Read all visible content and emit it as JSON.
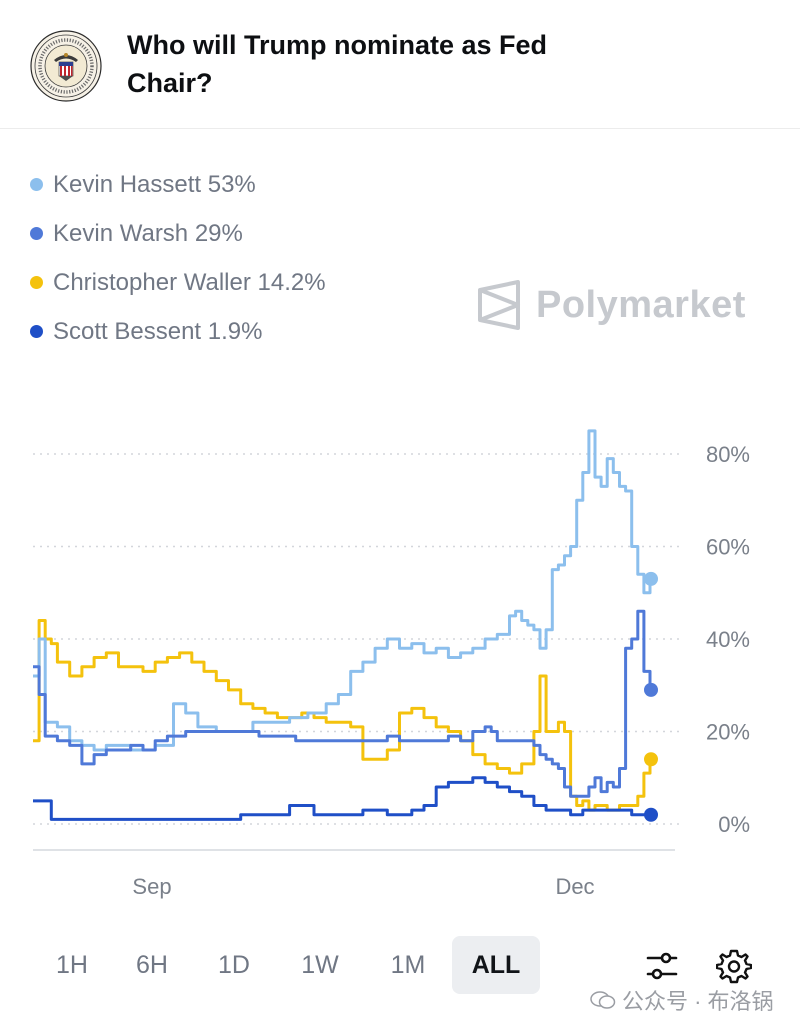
{
  "header": {
    "title": "Who will Trump nominate as Fed Chair?"
  },
  "watermark": {
    "text": "Polymarket"
  },
  "legend": [
    {
      "label": "Kevin Hassett 53%",
      "color": "#8cbfed"
    },
    {
      "label": "Kevin Warsh 29%",
      "color": "#4f79d8"
    },
    {
      "label": "Christopher Waller 14.2%",
      "color": "#f4c20d"
    },
    {
      "label": "Scott Bessent 1.9%",
      "color": "#1f4fc7"
    }
  ],
  "toolbar": {
    "ranges": [
      "1H",
      "6H",
      "1D",
      "1W",
      "1M",
      "ALL"
    ],
    "active": "ALL"
  },
  "footer": {
    "text": "公众号 · 布洛锅"
  },
  "chart_data": {
    "type": "line",
    "x_ticks": [
      "Sep",
      "Dec"
    ],
    "y_ticks": [
      "0%",
      "20%",
      "40%",
      "60%",
      "80%"
    ],
    "ylim": [
      0,
      85
    ],
    "xlim": [
      0,
      100
    ],
    "grid": true,
    "series": [
      {
        "name": "Kevin Hassett",
        "color": "#8cbfed",
        "points": [
          [
            0,
            32
          ],
          [
            1,
            40
          ],
          [
            2,
            22
          ],
          [
            4,
            21
          ],
          [
            6,
            18
          ],
          [
            8,
            17
          ],
          [
            10,
            16
          ],
          [
            12,
            17
          ],
          [
            14,
            17
          ],
          [
            16,
            16
          ],
          [
            18,
            16
          ],
          [
            20,
            17
          ],
          [
            22,
            17
          ],
          [
            23,
            26
          ],
          [
            25,
            24
          ],
          [
            27,
            21
          ],
          [
            30,
            20
          ],
          [
            33,
            20
          ],
          [
            36,
            22
          ],
          [
            39,
            22
          ],
          [
            42,
            23
          ],
          [
            45,
            24
          ],
          [
            48,
            26
          ],
          [
            50,
            28
          ],
          [
            52,
            33
          ],
          [
            54,
            35
          ],
          [
            56,
            38
          ],
          [
            58,
            40
          ],
          [
            60,
            38
          ],
          [
            62,
            39
          ],
          [
            64,
            37
          ],
          [
            66,
            38
          ],
          [
            68,
            36
          ],
          [
            70,
            37
          ],
          [
            72,
            38
          ],
          [
            74,
            40
          ],
          [
            76,
            41
          ],
          [
            78,
            45
          ],
          [
            79,
            46
          ],
          [
            80,
            44
          ],
          [
            81,
            43
          ],
          [
            82,
            42
          ],
          [
            83,
            38
          ],
          [
            84,
            42
          ],
          [
            85,
            55
          ],
          [
            86,
            56
          ],
          [
            87,
            58
          ],
          [
            88,
            60
          ],
          [
            89,
            70
          ],
          [
            90,
            76
          ],
          [
            91,
            85
          ],
          [
            92,
            75
          ],
          [
            93,
            73
          ],
          [
            94,
            79
          ],
          [
            95,
            76
          ],
          [
            96,
            73
          ],
          [
            97,
            72
          ],
          [
            98,
            60
          ],
          [
            99,
            54
          ],
          [
            100,
            50
          ],
          [
            101,
            53
          ]
        ]
      },
      {
        "name": "Kevin Warsh",
        "color": "#4f79d8",
        "points": [
          [
            0,
            34
          ],
          [
            1,
            28
          ],
          [
            2,
            19
          ],
          [
            4,
            18
          ],
          [
            6,
            17
          ],
          [
            8,
            13
          ],
          [
            10,
            15
          ],
          [
            12,
            16
          ],
          [
            14,
            16
          ],
          [
            16,
            17
          ],
          [
            18,
            16
          ],
          [
            20,
            18
          ],
          [
            22,
            19
          ],
          [
            25,
            20
          ],
          [
            28,
            20
          ],
          [
            31,
            20
          ],
          [
            34,
            20
          ],
          [
            37,
            19
          ],
          [
            40,
            19
          ],
          [
            43,
            18
          ],
          [
            46,
            18
          ],
          [
            49,
            18
          ],
          [
            52,
            18
          ],
          [
            55,
            18
          ],
          [
            58,
            19
          ],
          [
            60,
            18
          ],
          [
            62,
            18
          ],
          [
            64,
            18
          ],
          [
            66,
            18
          ],
          [
            68,
            19
          ],
          [
            70,
            18
          ],
          [
            72,
            20
          ],
          [
            74,
            21
          ],
          [
            75,
            20
          ],
          [
            76,
            18
          ],
          [
            78,
            18
          ],
          [
            80,
            18
          ],
          [
            82,
            17
          ],
          [
            83,
            15
          ],
          [
            84,
            14
          ],
          [
            85,
            13
          ],
          [
            86,
            12
          ],
          [
            87,
            8
          ],
          [
            88,
            6
          ],
          [
            89,
            6
          ],
          [
            90,
            6
          ],
          [
            91,
            8
          ],
          [
            92,
            10
          ],
          [
            93,
            7
          ],
          [
            94,
            9
          ],
          [
            95,
            8
          ],
          [
            96,
            12
          ],
          [
            97,
            38
          ],
          [
            98,
            40
          ],
          [
            99,
            46
          ],
          [
            100,
            33
          ],
          [
            101,
            29
          ]
        ]
      },
      {
        "name": "Christopher Waller",
        "color": "#f4c20d",
        "points": [
          [
            0,
            18
          ],
          [
            1,
            44
          ],
          [
            2,
            40
          ],
          [
            3,
            39
          ],
          [
            4,
            35
          ],
          [
            6,
            32
          ],
          [
            8,
            34
          ],
          [
            10,
            36
          ],
          [
            12,
            37
          ],
          [
            14,
            34
          ],
          [
            16,
            34
          ],
          [
            18,
            33
          ],
          [
            20,
            35
          ],
          [
            22,
            36
          ],
          [
            24,
            37
          ],
          [
            26,
            35
          ],
          [
            28,
            33
          ],
          [
            30,
            31
          ],
          [
            32,
            29
          ],
          [
            34,
            26
          ],
          [
            36,
            25
          ],
          [
            38,
            24
          ],
          [
            40,
            23
          ],
          [
            42,
            23
          ],
          [
            44,
            24
          ],
          [
            46,
            23
          ],
          [
            48,
            22
          ],
          [
            50,
            22
          ],
          [
            52,
            21
          ],
          [
            54,
            14
          ],
          [
            56,
            14
          ],
          [
            58,
            16
          ],
          [
            60,
            24
          ],
          [
            62,
            25
          ],
          [
            64,
            23
          ],
          [
            66,
            21
          ],
          [
            68,
            20
          ],
          [
            70,
            18
          ],
          [
            72,
            15
          ],
          [
            74,
            13
          ],
          [
            76,
            12
          ],
          [
            78,
            11
          ],
          [
            80,
            13
          ],
          [
            82,
            20
          ],
          [
            83,
            32
          ],
          [
            84,
            20
          ],
          [
            85,
            20
          ],
          [
            86,
            22
          ],
          [
            87,
            20
          ],
          [
            88,
            6
          ],
          [
            89,
            4
          ],
          [
            90,
            5
          ],
          [
            91,
            3
          ],
          [
            92,
            4
          ],
          [
            93,
            4
          ],
          [
            94,
            3
          ],
          [
            95,
            3
          ],
          [
            96,
            4
          ],
          [
            97,
            4
          ],
          [
            98,
            4
          ],
          [
            99,
            6
          ],
          [
            100,
            11
          ],
          [
            101,
            14
          ]
        ]
      },
      {
        "name": "Scott Bessent",
        "color": "#1f4fc7",
        "points": [
          [
            0,
            5
          ],
          [
            2,
            5
          ],
          [
            3,
            1
          ],
          [
            6,
            1
          ],
          [
            10,
            1
          ],
          [
            14,
            1
          ],
          [
            18,
            1
          ],
          [
            22,
            1
          ],
          [
            26,
            1
          ],
          [
            30,
            1
          ],
          [
            34,
            2
          ],
          [
            38,
            2
          ],
          [
            42,
            4
          ],
          [
            46,
            2
          ],
          [
            50,
            2
          ],
          [
            54,
            3
          ],
          [
            58,
            2
          ],
          [
            62,
            3
          ],
          [
            64,
            4
          ],
          [
            66,
            8
          ],
          [
            68,
            9
          ],
          [
            70,
            9
          ],
          [
            72,
            10
          ],
          [
            74,
            9
          ],
          [
            76,
            8
          ],
          [
            78,
            7
          ],
          [
            80,
            6
          ],
          [
            82,
            4
          ],
          [
            84,
            3
          ],
          [
            86,
            3
          ],
          [
            88,
            2
          ],
          [
            90,
            3
          ],
          [
            92,
            3
          ],
          [
            94,
            3
          ],
          [
            96,
            3
          ],
          [
            98,
            2
          ],
          [
            100,
            2
          ],
          [
            101,
            2
          ]
        ]
      }
    ]
  }
}
